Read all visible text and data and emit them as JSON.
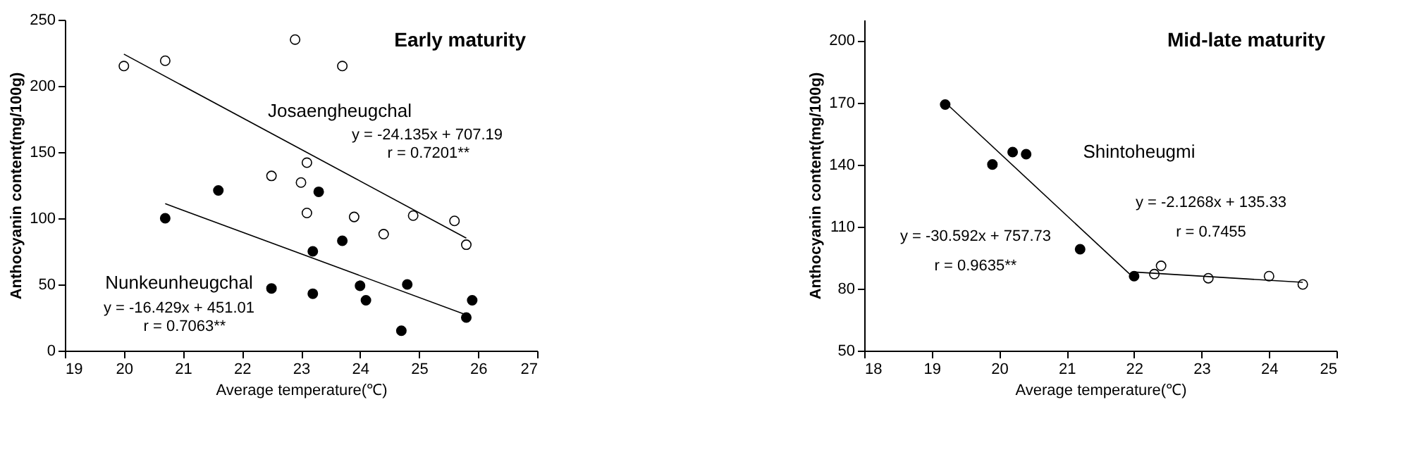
{
  "chart_data": [
    {
      "type": "scatter",
      "title": "Early maturity",
      "xlabel": "Average temperature(℃)",
      "ylabel": "Anthocyanin content(mg/100g)",
      "xlim": [
        19,
        27
      ],
      "xticks": [
        19,
        20,
        21,
        22,
        23,
        24,
        25,
        26,
        27
      ],
      "ylim": [
        0,
        250
      ],
      "yticks": [
        0,
        50,
        100,
        150,
        200,
        250
      ],
      "grid": false,
      "series": [
        {
          "marker": "circle",
          "color": "#ffffff",
          "x": [
            20,
            20.7,
            22.9,
            23.7,
            23.1,
            22.5,
            23,
            23.1,
            23.9,
            24.4,
            24.9,
            25.6,
            25.8
          ],
          "values": [
            215,
            219,
            235,
            215,
            142,
            132,
            127,
            104,
            101,
            88,
            102,
            98,
            80
          ]
        },
        {
          "marker": "circle",
          "color": "#000000",
          "x": [
            20.7,
            21.6,
            23.3,
            23.7,
            23.2,
            22.5,
            23.2,
            24,
            24.1,
            24.8,
            24.7,
            25.8,
            25.9
          ],
          "values": [
            100,
            121,
            120,
            83,
            75,
            47,
            43,
            49,
            38,
            50,
            15,
            25,
            38
          ]
        },
        {
          "type": "line",
          "marker": "none",
          "color": "#000000",
          "x": [
            20,
            25.8
          ],
          "values": [
            224,
            85
          ]
        },
        {
          "type": "line",
          "marker": "none",
          "color": "#000000",
          "x": [
            20.7,
            25.8
          ],
          "values": [
            111,
            27
          ]
        }
      ],
      "annotations": [
        "Josaengheugchal",
        "y = -24.135x + 707.19",
        "r = 0.7201**",
        "Nunkeunheugchal",
        "y = -16.429x + 451.01",
        "r = 0.7063**"
      ]
    },
    {
      "type": "scatter",
      "title": "Mid-late maturity",
      "xlabel": "Average temperature(℃)",
      "ylabel": "Anthocyanin content(mg/100g)",
      "xlim": [
        18,
        25
      ],
      "xticks": [
        18,
        19,
        20,
        21,
        22,
        23,
        24,
        25
      ],
      "ylim": [
        50,
        210
      ],
      "yticks": [
        50,
        80,
        110,
        140,
        170,
        200
      ],
      "grid": false,
      "series": [
        {
          "marker": "circle",
          "color": "#000000",
          "x": [
            19.2,
            19.9,
            20.2,
            20.4,
            21.2,
            22
          ],
          "values": [
            169,
            140,
            146,
            145,
            99,
            86
          ]
        },
        {
          "marker": "circle",
          "color": "#ffffff",
          "x": [
            22.3,
            22.4,
            23.1,
            24,
            24.5
          ],
          "values": [
            87,
            91,
            85,
            86,
            82
          ]
        },
        {
          "type": "line",
          "marker": "none",
          "color": "#000000",
          "x": [
            19.2,
            22
          ],
          "values": [
            170,
            85
          ]
        },
        {
          "type": "line",
          "marker": "none",
          "color": "#000000",
          "x": [
            22,
            24.5
          ],
          "values": [
            88,
            83
          ]
        }
      ],
      "annotations": [
        "Shintoheugmi",
        "y = -30.592x + 757.73",
        "r = 0.9635**",
        "y = -2.1268x + 135.33",
        "r = 0.7455"
      ]
    }
  ]
}
